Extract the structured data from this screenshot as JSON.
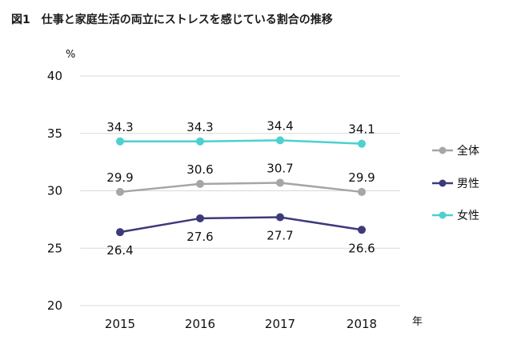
{
  "figure": {
    "number": "図1",
    "title": "仕事と家庭生活の両立にストレスを感じている割合の推移"
  },
  "chart_data": {
    "type": "line",
    "title": "仕事と家庭生活の両立にストレスを感じている割合の推移",
    "ylabel": "%",
    "xlabel": "年",
    "x": [
      "2015",
      "2016",
      "2017",
      "2018"
    ],
    "ylim": [
      20,
      40
    ],
    "yticks": [
      20,
      25,
      30,
      35,
      40
    ],
    "grid": true,
    "legend_position": "right",
    "series": [
      {
        "name": "全体",
        "color": "#a6a6a6",
        "values": [
          29.9,
          30.6,
          30.7,
          29.9
        ],
        "label_position": "above"
      },
      {
        "name": "男性",
        "color": "#3e3a7a",
        "values": [
          26.4,
          27.6,
          27.7,
          26.6
        ],
        "label_position": "below"
      },
      {
        "name": "女性",
        "color": "#4dd0d0",
        "values": [
          34.3,
          34.3,
          34.4,
          34.1
        ],
        "label_position": "above"
      }
    ],
    "legend_order": [
      "全体",
      "男性",
      "女性"
    ]
  }
}
